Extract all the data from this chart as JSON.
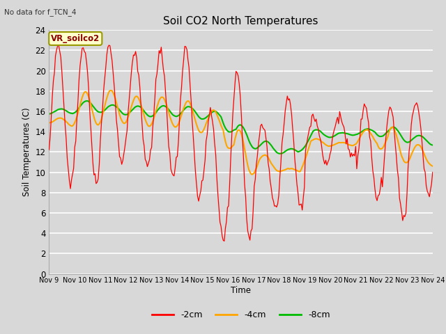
{
  "title": "Soil CO2 North Temperatures",
  "subtitle": "No data for f_TCN_4",
  "ylabel": "Soil Temperatures (C)",
  "xlabel": "Time",
  "legend_label": "VR_soilco2",
  "series_labels": [
    "-2cm",
    "-4cm",
    "-8cm"
  ],
  "series_colors": [
    "#ff0000",
    "#ffa500",
    "#00bb00"
  ],
  "ylim": [
    0,
    24
  ],
  "bg_color": "#d8d8d8",
  "grid_color": "#ffffff",
  "tick_labels": [
    "Nov 9",
    "Nov 10",
    "Nov 11",
    "Nov 12",
    "Nov 13",
    "Nov 14",
    "Nov 15",
    "Nov 16",
    "Nov 17",
    "Nov 18",
    "Nov 19",
    "Nov 20",
    "Nov 21",
    "Nov 22",
    "Nov 23",
    "Nov 24"
  ]
}
